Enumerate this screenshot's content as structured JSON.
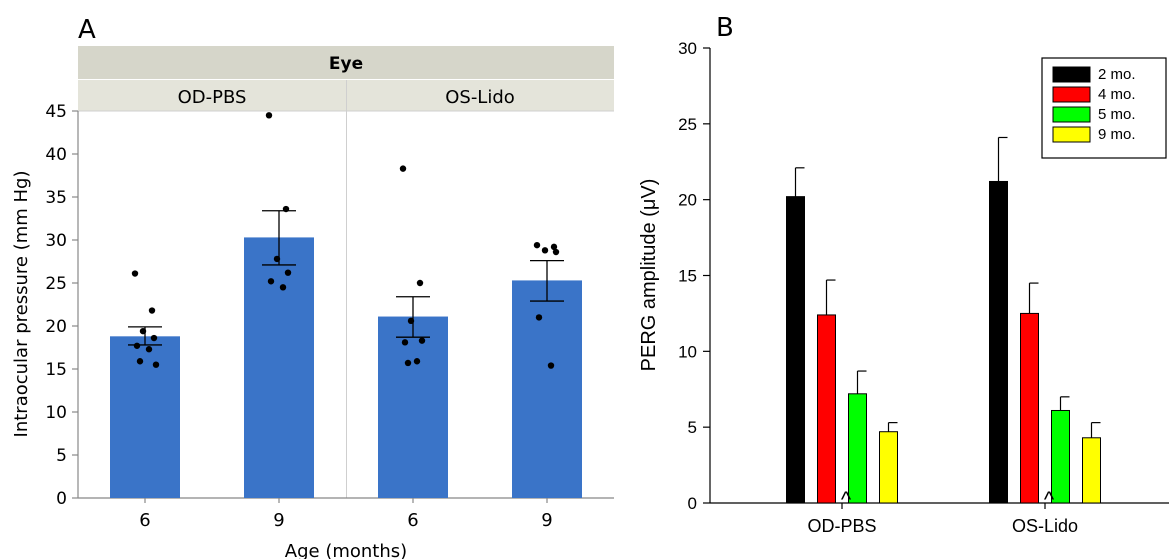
{
  "chart_data": [
    {
      "panel_label": "A",
      "type": "bar",
      "facet_title": "Eye",
      "facets": [
        {
          "name": "OD-PBS",
          "categories": [
            "6",
            "9"
          ],
          "values": [
            18.8,
            30.3
          ],
          "error_low": [
            17.8,
            27.1
          ],
          "error_high": [
            19.9,
            33.4
          ],
          "points": [
            [
              26.1,
              21.8,
              19.4,
              18.6,
              17.7,
              17.3,
              15.9,
              15.5
            ],
            [
              44.5,
              33.6,
              27.8,
              26.2,
              25.2,
              24.5
            ]
          ]
        },
        {
          "name": "OS-Lido",
          "categories": [
            "6",
            "9"
          ],
          "values": [
            21.1,
            25.3
          ],
          "error_low": [
            18.7,
            22.9
          ],
          "error_high": [
            23.4,
            27.6
          ],
          "points": [
            [
              38.3,
              25.0,
              20.6,
              18.3,
              18.1,
              15.9,
              15.7
            ],
            [
              29.4,
              29.2,
              28.8,
              28.6,
              21.0,
              15.4
            ]
          ]
        }
      ],
      "xlabel": "Age (months)",
      "ylabel": "Intraocular pressure (mm Hg)",
      "ylim": [
        0,
        45
      ],
      "yticks": [
        0,
        5,
        10,
        15,
        20,
        25,
        30,
        35,
        40,
        45
      ],
      "colors": {
        "bar": "#3a74c8",
        "header": "#e4e4da",
        "error": "#000000"
      }
    },
    {
      "panel_label": "B",
      "type": "bar",
      "categories": [
        "OD-PBS",
        "OS-Lido"
      ],
      "category_markers": [
        "^",
        "^"
      ],
      "series": [
        {
          "name": "2 mo.",
          "color": "#000000",
          "values": [
            20.2,
            21.2
          ],
          "error_high": [
            22.1,
            24.1
          ]
        },
        {
          "name": "4 mo.",
          "color": "#ff0000",
          "values": [
            12.4,
            12.5
          ],
          "error_high": [
            14.7,
            14.5
          ]
        },
        {
          "name": "5 mo.",
          "color": "#00ff00",
          "values": [
            7.2,
            6.1
          ],
          "error_high": [
            8.7,
            7.0
          ]
        },
        {
          "name": "9 mo.",
          "color": "#ffff00",
          "values": [
            4.7,
            4.3
          ],
          "error_high": [
            5.3,
            5.3
          ]
        }
      ],
      "xlabel": "",
      "ylabel": "PERG amplitude (μV)",
      "ylim": [
        0,
        30
      ],
      "yticks": [
        0,
        5,
        10,
        15,
        20,
        25,
        30
      ],
      "legend": "top-right"
    }
  ]
}
